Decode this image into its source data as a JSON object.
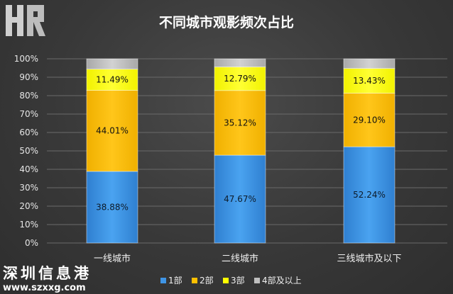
{
  "chart_data": {
    "type": "bar",
    "stacked": true,
    "title": "不同城市观影频次占比",
    "categories": [
      "一线城市",
      "二线城市",
      "三线城市及以下"
    ],
    "series": [
      {
        "name": "1部",
        "color": "#3f95e6",
        "values": [
          38.88,
          47.67,
          52.24
        ],
        "labels": [
          "38.88%",
          "47.67%",
          "52.24%"
        ]
      },
      {
        "name": "2部",
        "color": "#ffc000",
        "values": [
          44.01,
          35.12,
          29.1
        ],
        "labels": [
          "44.01%",
          "35.12%",
          "29.10%"
        ]
      },
      {
        "name": "3部",
        "color": "#ffff00",
        "values": [
          11.49,
          12.79,
          13.43
        ],
        "labels": [
          "11.49%",
          "12.79%",
          "13.43%"
        ]
      },
      {
        "name": "4部及以上",
        "color": "#bfbfbf",
        "values": [
          5.62,
          4.42,
          5.23
        ],
        "labels": [
          "",
          "",
          ""
        ]
      }
    ],
    "ylim": [
      0,
      100
    ],
    "yticks": [
      "0%",
      "10%",
      "20%",
      "30%",
      "40%",
      "50%",
      "60%",
      "70%",
      "80%",
      "90%",
      "100%"
    ],
    "grid": true,
    "legend_position": "bottom"
  },
  "watermark": {
    "logo_text": "HR",
    "site_name": "深圳信息港",
    "site_url": "www.szxxg.com"
  }
}
